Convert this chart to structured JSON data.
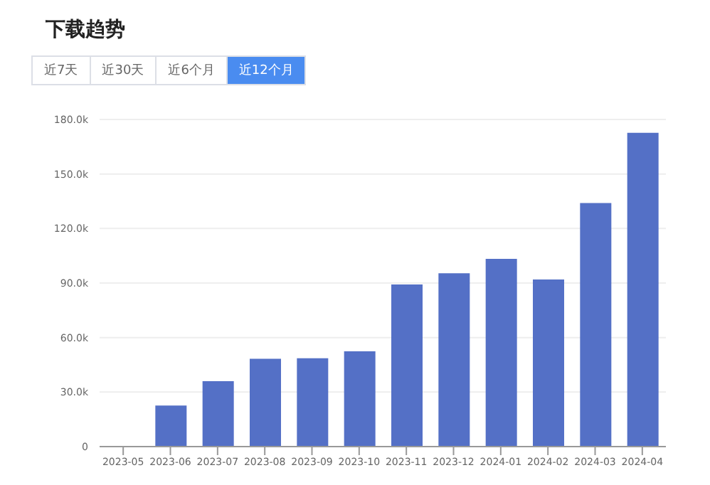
{
  "chart_data": {
    "type": "bar",
    "title": "下载趋势",
    "annotations": [
      "近7天",
      "近30天",
      "近6个月",
      "近12个月"
    ],
    "categories": [
      "2023-05",
      "2023-06",
      "2023-07",
      "2023-08",
      "2023-09",
      "2023-10",
      "2023-11",
      "2023-12",
      "2024-01",
      "2024-02",
      "2024-03",
      "2024-04"
    ],
    "values": [
      0,
      22600,
      36000,
      48300,
      48600,
      52400,
      89200,
      95400,
      103300,
      92000,
      134000,
      172700
    ],
    "color": "#5470c6",
    "ylim": [
      0,
      180000
    ],
    "yticks": [
      {
        "value": 0,
        "label": "0"
      },
      {
        "value": 30000,
        "label": "30.0k"
      },
      {
        "value": 60000,
        "label": "60.0k"
      },
      {
        "value": 90000,
        "label": "90.0k"
      },
      {
        "value": 120000,
        "label": "120.0k"
      },
      {
        "value": 150000,
        "label": "150.0k"
      },
      {
        "value": 180000,
        "label": "180.0k"
      }
    ],
    "grid": "y"
  }
}
